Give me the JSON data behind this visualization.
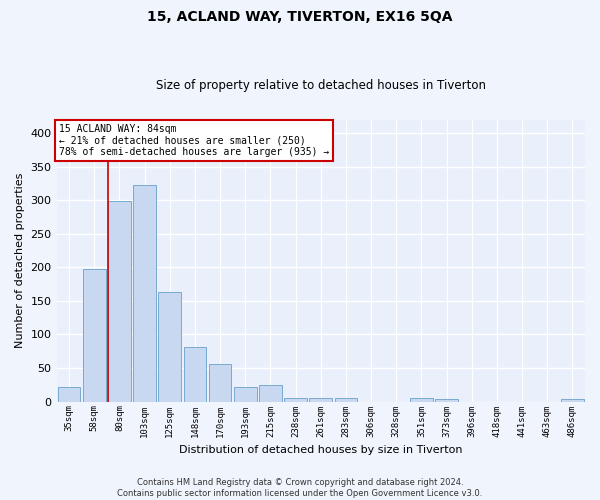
{
  "title": "15, ACLAND WAY, TIVERTON, EX16 5QA",
  "subtitle": "Size of property relative to detached houses in Tiverton",
  "xlabel": "Distribution of detached houses by size in Tiverton",
  "ylabel": "Number of detached properties",
  "bar_color": "#c8d8f0",
  "bar_edge_color": "#7aaad0",
  "background_color": "#eaf0fb",
  "fig_background_color": "#f0f4fc",
  "grid_color": "#ffffff",
  "vline_color": "#cc0000",
  "annotation_box_facecolor": "#ffffff",
  "annotation_border_color": "#cc0000",
  "categories": [
    "35sqm",
    "58sqm",
    "80sqm",
    "103sqm",
    "125sqm",
    "148sqm",
    "170sqm",
    "193sqm",
    "215sqm",
    "238sqm",
    "261sqm",
    "283sqm",
    "306sqm",
    "328sqm",
    "351sqm",
    "373sqm",
    "396sqm",
    "418sqm",
    "441sqm",
    "463sqm",
    "486sqm"
  ],
  "values": [
    22,
    198,
    298,
    322,
    163,
    82,
    56,
    22,
    25,
    6,
    6,
    6,
    0,
    0,
    5,
    4,
    0,
    0,
    0,
    0,
    4
  ],
  "property_label": "15 ACLAND WAY: 84sqm",
  "pct_smaller": 21,
  "n_smaller": 250,
  "pct_larger_semi": 78,
  "n_larger_semi": 935,
  "vline_bin_index": 2,
  "footer_line1": "Contains HM Land Registry data © Crown copyright and database right 2024.",
  "footer_line2": "Contains public sector information licensed under the Open Government Licence v3.0.",
  "ylim": [
    0,
    420
  ],
  "yticks": [
    0,
    50,
    100,
    150,
    200,
    250,
    300,
    350,
    400
  ]
}
